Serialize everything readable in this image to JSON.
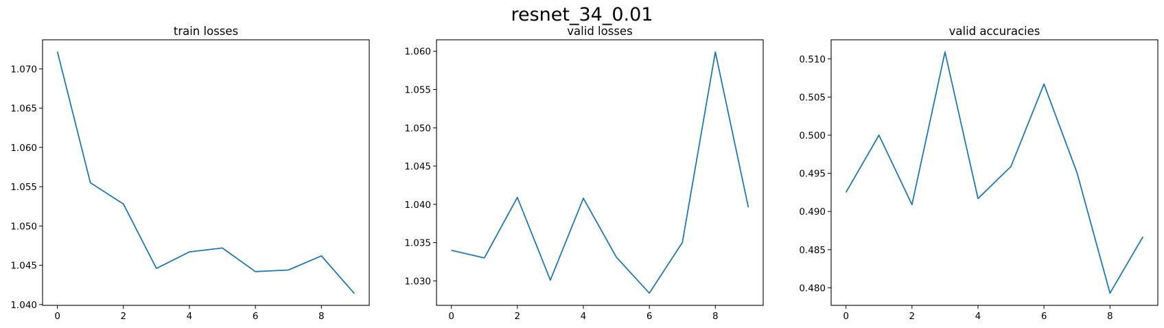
{
  "figure": {
    "title": "resnet_34_0.01"
  },
  "chart_data": [
    {
      "type": "line",
      "title": "train losses",
      "color": "#1f77b4",
      "x": [
        0,
        1,
        2,
        3,
        4,
        5,
        6,
        7,
        8,
        9
      ],
      "y": [
        1.0722,
        1.0555,
        1.0528,
        1.0446,
        1.0467,
        1.0472,
        1.0442,
        1.0444,
        1.0462,
        1.0414
      ],
      "xlim": [
        -0.45,
        9.45
      ],
      "ylim": [
        1.0399,
        1.0737
      ],
      "xticks": [
        0,
        2,
        4,
        6,
        8
      ],
      "yticks": [
        1.04,
        1.045,
        1.05,
        1.055,
        1.06,
        1.065,
        1.07
      ],
      "ytick_decimals": 3
    },
    {
      "type": "line",
      "title": "valid losses",
      "color": "#1f77b4",
      "x": [
        0,
        1,
        2,
        3,
        4,
        5,
        6,
        7,
        8,
        9
      ],
      "y": [
        1.034,
        1.033,
        1.0409,
        1.0301,
        1.0408,
        1.0331,
        1.0284,
        1.035,
        1.0599,
        1.0396
      ],
      "xlim": [
        -0.45,
        9.45
      ],
      "ylim": [
        1.0268,
        1.0615
      ],
      "xticks": [
        0,
        2,
        4,
        6,
        8
      ],
      "yticks": [
        1.03,
        1.035,
        1.04,
        1.045,
        1.05,
        1.055,
        1.06
      ],
      "ytick_decimals": 3
    },
    {
      "type": "line",
      "title": "valid accuracies",
      "color": "#1f77b4",
      "x": [
        0,
        1,
        2,
        3,
        4,
        5,
        6,
        7,
        8,
        9
      ],
      "y": [
        0.4925,
        0.5,
        0.4909,
        0.5109,
        0.4917,
        0.4959,
        0.5067,
        0.4951,
        0.4793,
        0.4867
      ],
      "xlim": [
        -0.45,
        9.45
      ],
      "ylim": [
        0.4777,
        0.5125
      ],
      "xticks": [
        0,
        2,
        4,
        6,
        8
      ],
      "yticks": [
        0.48,
        0.485,
        0.49,
        0.495,
        0.5,
        0.505,
        0.51
      ],
      "ytick_decimals": 3
    }
  ]
}
